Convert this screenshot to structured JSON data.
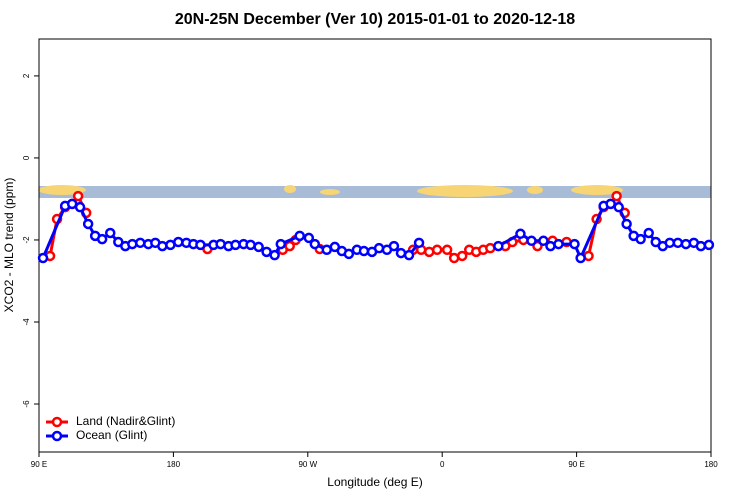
{
  "chart_data": {
    "type": "line",
    "title": "20N-25N December (Ver 10)   2015-01-01 to 2020-12-18",
    "x_label": "Longitude (deg E)",
    "y_label": "XCO2 - MLO trend (ppm)",
    "xlim": [
      90,
      540
    ],
    "xticks": [
      {
        "value": 90,
        "label": "90 E"
      },
      {
        "value": 180,
        "label": "180"
      },
      {
        "value": 270,
        "label": "90 W"
      },
      {
        "value": 360,
        "label": "0"
      },
      {
        "value": 450,
        "label": "90 E"
      },
      {
        "value": 540,
        "label": "180"
      }
    ],
    "ylim": [
      -7.17,
      2.9
    ],
    "yticks": [
      2,
      0,
      -2,
      -4,
      -6
    ],
    "legend": "bottom-left",
    "series": [
      {
        "name": "Land (Nadir&Glint)",
        "color": "#ff0000",
        "x": [
          97.4,
          102.1,
          107.5,
          112.2,
          116.2,
          121.6,
          null,
          202.8,
          null,
          253.2,
          257.9,
          261.9,
          null,
          278,
          null,
          340.5,
          345.9,
          351.3,
          356.6,
          363.3,
          368,
          373.4,
          378.1,
          382.8,
          387.5,
          392.2,
          402.3,
          407,
          414.4,
          423.8,
          433.9,
          443.3,
          null,
          458,
          463.4,
          468.1,
          472.8,
          476.8,
          482.2
        ],
        "values": [
          -2.39,
          -1.49,
          -1.2,
          -1.12,
          -0.93,
          -1.34,
          null,
          -2.22,
          null,
          -2.24,
          -2.15,
          -2.0,
          null,
          -2.22,
          null,
          -2.24,
          -2.24,
          -2.29,
          -2.24,
          -2.24,
          -2.44,
          -2.39,
          -2.24,
          -2.29,
          -2.24,
          -2.2,
          -2.15,
          -2.05,
          -2.0,
          -2.15,
          -2.02,
          -2.05,
          null,
          -2.39,
          -1.49,
          -1.2,
          -1.12,
          -0.93,
          -1.34
        ]
      },
      {
        "name": "Ocean (Glint)",
        "color": "#0000ff",
        "x": [
          92.7,
          107.5,
          112.2,
          117.5,
          122.9,
          127.6,
          132.3,
          137.7,
          143.1,
          147.8,
          152.5,
          157.8,
          163.2,
          167.9,
          172.6,
          178,
          183.3,
          188.7,
          193.4,
          198.1,
          206.9,
          211.6,
          216.9,
          221.6,
          227,
          231.7,
          237.1,
          242.4,
          247.8,
          251.9,
          264.6,
          270.7,
          274.7,
          282.7,
          288.1,
          292.8,
          297.5,
          302.9,
          307.6,
          313,
          317.7,
          323,
          327.7,
          332.4,
          337.8,
          344.5,
          null,
          397.6,
          412.4,
          419.8,
          427.8,
          432.5,
          437.9,
          448.6,
          452.7,
          468.1,
          472.8,
          478.2,
          483.5,
          488.2,
          492.9,
          498.3,
          503,
          507.7,
          512.4,
          517.8,
          523.2,
          528.5,
          533.2,
          538.6
        ],
        "values": [
          -2.44,
          -1.17,
          -1.12,
          -1.2,
          -1.61,
          -1.9,
          -1.98,
          -1.83,
          -2.05,
          -2.15,
          -2.1,
          -2.07,
          -2.1,
          -2.07,
          -2.15,
          -2.12,
          -2.05,
          -2.07,
          -2.1,
          -2.12,
          -2.12,
          -2.1,
          -2.15,
          -2.12,
          -2.1,
          -2.12,
          -2.17,
          -2.29,
          -2.37,
          -2.1,
          -1.9,
          -1.95,
          -2.1,
          -2.24,
          -2.17,
          -2.27,
          -2.34,
          -2.24,
          -2.27,
          -2.29,
          -2.2,
          -2.24,
          -2.15,
          -2.32,
          -2.37,
          -2.07,
          null,
          -2.15,
          -1.85,
          -2.02,
          -2.02,
          -2.15,
          -2.1,
          -2.1,
          -2.44,
          -1.17,
          -1.12,
          -1.2,
          -1.61,
          -1.9,
          -1.98,
          -1.83,
          -2.05,
          -2.15,
          -2.07,
          -2.07,
          -2.1,
          -2.07,
          -2.15,
          -2.12
        ]
      }
    ]
  }
}
